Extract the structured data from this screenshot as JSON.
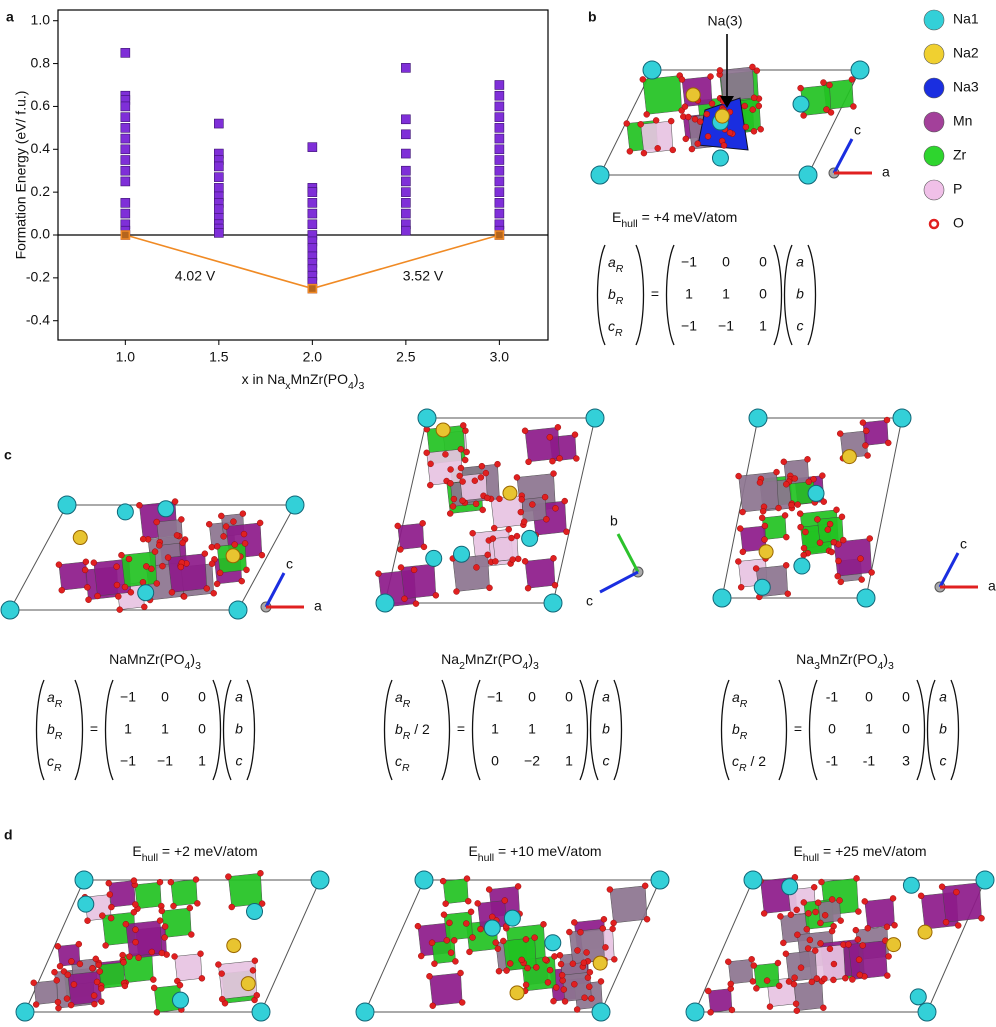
{
  "panel_labels": [
    "a",
    "b",
    "c",
    "d"
  ],
  "chart_data": {
    "type": "scatter",
    "ylabel": "Formation Energy (eV/ f.u.)",
    "xlabel": [
      "x in Na",
      "x",
      "MnZr(PO",
      "4",
      ")",
      "3"
    ],
    "xlim": [
      0.64,
      3.26
    ],
    "ylim": [
      -0.49,
      1.05
    ],
    "xticks": [
      {
        "value": 1,
        "label": "1.0"
      },
      1.5,
      {
        "value": 2,
        "label": "2.0"
      },
      2.5,
      {
        "value": 3,
        "label": "3.0"
      }
    ],
    "yticks": [
      -0.4,
      -0.2,
      {
        "value": 0,
        "label": "0.0"
      },
      0.2,
      0.4,
      0.6,
      0.8,
      {
        "value": 1,
        "label": "1.0"
      }
    ],
    "series": [
      {
        "color": "#7f2fd8",
        "x": [
          1,
          1,
          1,
          1,
          1,
          1,
          1,
          1,
          1,
          1,
          1,
          1,
          1,
          1,
          1,
          1,
          1.5,
          1.5,
          1.5,
          1.5,
          1.5,
          1.5,
          1.5,
          1.5,
          1.5,
          1.5,
          1.5,
          1.5,
          1.5,
          2,
          2,
          2,
          2,
          2,
          2,
          2,
          2,
          2,
          2,
          2,
          2,
          2,
          2,
          2,
          2.5,
          2.5,
          2.5,
          2.5,
          2.5,
          2.5,
          2.5,
          2.5,
          2.5,
          2.5,
          2.5,
          3,
          3,
          3,
          3,
          3,
          3,
          3,
          3,
          3,
          3,
          3,
          3,
          3,
          3,
          3,
          3
        ],
        "values": [
          0.85,
          0.65,
          0.63,
          0.6,
          0.55,
          0.5,
          0.45,
          0.4,
          0.35,
          0.3,
          0.25,
          0.15,
          0.1,
          0.05,
          0.02,
          0,
          0.52,
          0.38,
          0.35,
          0.32,
          0.27,
          0.22,
          0.18,
          0.15,
          0.12,
          0.08,
          0.05,
          0.03,
          0.01,
          0.41,
          0.22,
          0.2,
          0.15,
          0.1,
          0.05,
          0,
          -0.03,
          -0.06,
          -0.1,
          -0.13,
          -0.16,
          -0.19,
          -0.22,
          -0.25,
          0.78,
          0.54,
          0.47,
          0.38,
          0.3,
          0.25,
          0.2,
          0.15,
          0.1,
          0.05,
          0.02,
          0.7,
          0.65,
          0.6,
          0.55,
          0.5,
          0.45,
          0.4,
          0.35,
          0.3,
          0.25,
          0.2,
          0.15,
          0.1,
          0.05,
          0.02,
          0
        ]
      },
      {
        "color": "#f08a24",
        "style": "line",
        "x": [
          1,
          2,
          3
        ],
        "values": [
          0,
          -0.25,
          0
        ]
      }
    ],
    "annotations": [
      "4.02 V",
      "3.52 V"
    ]
  },
  "panel_b": {
    "annotation": "Na(3)",
    "axes": [
      "c",
      "a"
    ],
    "ehull": [
      "E",
      "hull",
      " = +4 meV/atom"
    ],
    "matrix": {
      "lhs": [
        [
          "a",
          "R"
        ],
        [
          "b",
          "R"
        ],
        [
          "c",
          "R"
        ]
      ],
      "eq": "=",
      "entries": [
        [
          "−1",
          "0",
          "0"
        ],
        [
          "1",
          "1",
          "0"
        ],
        [
          "−1",
          "−1",
          "1"
        ]
      ],
      "rhs": [
        "a",
        "b",
        "c"
      ]
    }
  },
  "legend": [
    {
      "name": "Na1",
      "color": "#33d0d8"
    },
    {
      "name": "Na2",
      "color": "#f0d030"
    },
    {
      "name": "Na3",
      "color": "#1a2ee0"
    },
    {
      "name": "Mn",
      "color": "#a3409a"
    },
    {
      "name": "Zr",
      "color": "#2ed52e"
    },
    {
      "name": "P",
      "color": "#f0c0e8"
    },
    {
      "name": "O",
      "color": "#e02020"
    }
  ],
  "panel_c": {
    "structures": [
      {
        "formula": [
          "NaMnZr(PO",
          "4",
          ")",
          "3"
        ],
        "axes": [
          "c",
          "a"
        ],
        "matrix": {
          "lhs": [
            [
              "a",
              "R"
            ],
            [
              "b",
              "R"
            ],
            [
              "c",
              "R"
            ]
          ],
          "eq": "=",
          "entries": [
            [
              "−1",
              "0",
              "0"
            ],
            [
              "1",
              "1",
              "0"
            ],
            [
              "−1",
              "−1",
              "1"
            ]
          ],
          "rhs": [
            "a",
            "b",
            "c"
          ]
        }
      },
      {
        "formula": [
          "Na",
          "2",
          "MnZr(PO",
          "4",
          ")",
          "3"
        ],
        "axes": [
          "b",
          "c"
        ],
        "matrix": {
          "lhs": [
            [
              "a",
              "R"
            ],
            [
              "b",
              "R",
              " / 2"
            ],
            [
              "c",
              "R"
            ]
          ],
          "eq": "=",
          "entries": [
            [
              "−1",
              "0",
              "0"
            ],
            [
              "1",
              "1",
              "1"
            ],
            [
              "0",
              "−2",
              "1"
            ]
          ],
          "rhs": [
            "a",
            "b",
            "c"
          ]
        }
      },
      {
        "formula": [
          "Na",
          "3",
          "MnZr(PO",
          "4",
          ")",
          "3"
        ],
        "axes": [
          "c",
          "a"
        ],
        "matrix": {
          "lhs": [
            [
              "a",
              "R"
            ],
            [
              "b",
              "R"
            ],
            [
              "c",
              "R",
              " / 2"
            ]
          ],
          "eq": "=",
          "entries": [
            [
              "-1",
              "0",
              "0"
            ],
            [
              "0",
              "1",
              "0"
            ],
            [
              "-1",
              "-1",
              "3"
            ]
          ],
          "rhs": [
            "a",
            "b",
            "c"
          ]
        }
      }
    ]
  },
  "panel_d": {
    "structures": [
      {
        "ehull": [
          "E",
          "hull",
          " = +2 meV/atom"
        ]
      },
      {
        "ehull": [
          "E",
          "hull",
          " = +10 meV/atom"
        ]
      },
      {
        "ehull": [
          "E",
          "hull",
          " = +25 meV/atom"
        ]
      }
    ]
  }
}
